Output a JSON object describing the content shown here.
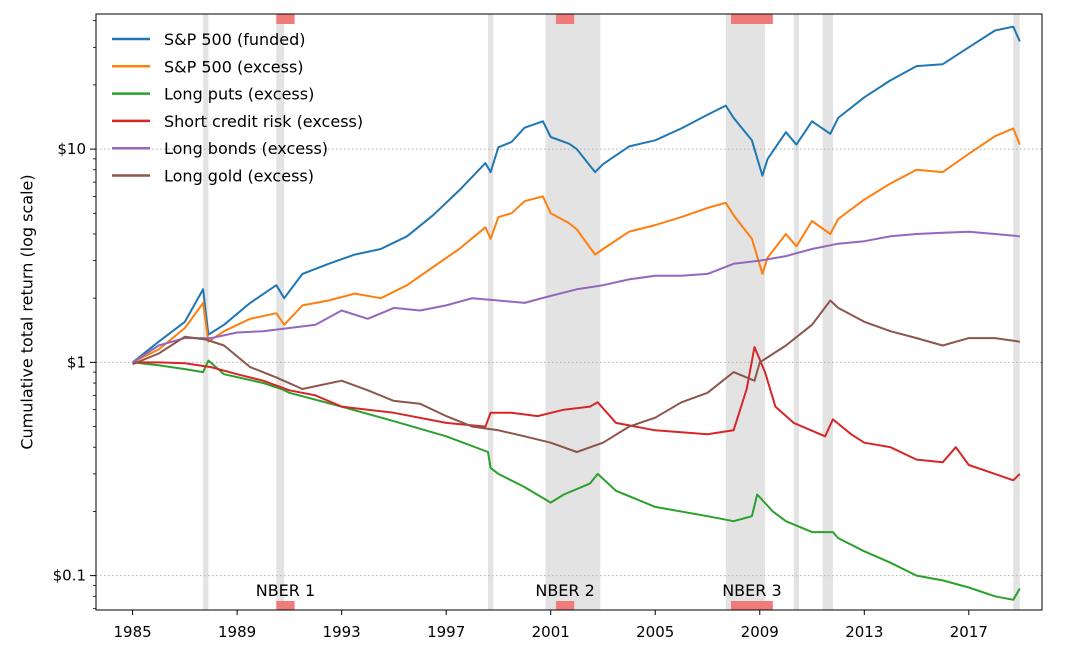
{
  "chart_data": {
    "type": "line",
    "title": "",
    "xlabel": "",
    "ylabel": "Cumulative total return (log scale)",
    "y_scale": "log",
    "xlim": [
      1983.6,
      2019.8
    ],
    "ylim": [
      0.069,
      43
    ],
    "grid": "horizontal dotted at labeled y ticks",
    "legend_position": "top-left",
    "x_ticks": [
      {
        "value": 1985,
        "label": "1985"
      },
      {
        "value": 1989,
        "label": "1989"
      },
      {
        "value": 1993,
        "label": "1993"
      },
      {
        "value": 1997,
        "label": "1997"
      },
      {
        "value": 2001,
        "label": "2001"
      },
      {
        "value": 2005,
        "label": "2005"
      },
      {
        "value": 2009,
        "label": "2009"
      },
      {
        "value": 2013,
        "label": "2013"
      },
      {
        "value": 2017,
        "label": "2017"
      }
    ],
    "y_ticks": [
      {
        "value": 0.1,
        "label": "$0.1"
      },
      {
        "value": 1,
        "label": "$1"
      },
      {
        "value": 10,
        "label": "$10"
      }
    ],
    "shaded_periods": [
      [
        1987.7,
        1987.9
      ],
      [
        1990.5,
        1990.8
      ],
      [
        1998.6,
        1998.8
      ],
      [
        2000.8,
        2002.9
      ],
      [
        2007.7,
        2009.2
      ],
      [
        2010.3,
        2010.5
      ],
      [
        2011.4,
        2011.8
      ],
      [
        2018.7,
        2018.95
      ]
    ],
    "nber_recessions": [
      {
        "label": "NBER 1",
        "start": 1990.5,
        "end": 1991.2
      },
      {
        "label": "NBER 2",
        "start": 2001.2,
        "end": 2001.9
      },
      {
        "label": "NBER 3",
        "start": 2007.9,
        "end": 2009.5
      }
    ],
    "series": [
      {
        "name": "S&P 500 (funded)",
        "color": "#1f77b4",
        "x": [
          1985,
          1986,
          1987,
          1987.7,
          1987.9,
          1988.5,
          1989.5,
          1990.5,
          1990.8,
          1991.5,
          1992.5,
          1993.5,
          1994.5,
          1995.5,
          1996.5,
          1997.5,
          1998.5,
          1998.7,
          1999,
          1999.5,
          2000,
          2000.7,
          2001,
          2001.7,
          2002,
          2002.7,
          2003,
          2004,
          2005,
          2006,
          2007,
          2007.7,
          2008,
          2008.7,
          2009.1,
          2009.3,
          2010,
          2010.4,
          2011,
          2011.7,
          2012,
          2013,
          2014,
          2015,
          2016,
          2017,
          2018,
          2018.7,
          2018.95
        ],
        "y": [
          1.0,
          1.25,
          1.55,
          2.2,
          1.35,
          1.5,
          1.9,
          2.3,
          2.0,
          2.6,
          2.9,
          3.2,
          3.4,
          3.9,
          4.9,
          6.4,
          8.6,
          7.8,
          10.2,
          10.8,
          12.6,
          13.5,
          11.4,
          10.6,
          10.0,
          7.8,
          8.5,
          10.3,
          11.0,
          12.5,
          14.5,
          16.0,
          14.0,
          11.0,
          7.5,
          9.0,
          12.0,
          10.5,
          13.5,
          11.8,
          14.0,
          17.5,
          21.0,
          24.5,
          25.0,
          30.0,
          36.0,
          37.5,
          32.0
        ]
      },
      {
        "name": "S&P 500 (excess)",
        "color": "#ff7f0e",
        "x": [
          1985,
          1986,
          1987,
          1987.7,
          1987.9,
          1988.5,
          1989.5,
          1990.5,
          1990.8,
          1991.5,
          1992.5,
          1993.5,
          1994.5,
          1995.5,
          1996.5,
          1997.5,
          1998.5,
          1998.7,
          1999,
          1999.5,
          2000,
          2000.7,
          2001,
          2001.7,
          2002,
          2002.7,
          2003,
          2004,
          2005,
          2006,
          2007,
          2007.7,
          2008,
          2008.7,
          2009.1,
          2009.3,
          2010,
          2010.4,
          2011,
          2011.7,
          2012,
          2013,
          2014,
          2015,
          2016,
          2017,
          2018,
          2018.7,
          2018.95
        ],
        "y": [
          1.0,
          1.15,
          1.45,
          1.9,
          1.25,
          1.4,
          1.6,
          1.7,
          1.5,
          1.85,
          1.95,
          2.1,
          2.0,
          2.3,
          2.8,
          3.4,
          4.3,
          3.8,
          4.8,
          5.0,
          5.7,
          6.0,
          5.0,
          4.5,
          4.2,
          3.2,
          3.4,
          4.1,
          4.4,
          4.8,
          5.3,
          5.6,
          4.9,
          3.8,
          2.6,
          3.1,
          4.0,
          3.5,
          4.6,
          4.0,
          4.7,
          5.8,
          6.9,
          8.0,
          7.8,
          9.5,
          11.5,
          12.5,
          10.5
        ]
      },
      {
        "name": "Long puts (excess)",
        "color": "#2ca02c",
        "x": [
          1985,
          1986,
          1987,
          1987.7,
          1987.9,
          1988.5,
          1990,
          1990.7,
          1991,
          1993,
          1995,
          1997,
          1998.6,
          1998.7,
          1999,
          2000,
          2001,
          2001.5,
          2002.5,
          2002.8,
          2003.5,
          2005,
          2007,
          2008,
          2008.7,
          2008.9,
          2009.5,
          2010,
          2011,
          2011.8,
          2012,
          2013,
          2014,
          2015,
          2016,
          2017,
          2018,
          2018.7,
          2018.95
        ],
        "y": [
          1.0,
          0.97,
          0.93,
          0.9,
          1.02,
          0.88,
          0.8,
          0.75,
          0.72,
          0.62,
          0.53,
          0.45,
          0.38,
          0.32,
          0.3,
          0.26,
          0.22,
          0.24,
          0.27,
          0.3,
          0.25,
          0.21,
          0.19,
          0.18,
          0.19,
          0.24,
          0.2,
          0.18,
          0.16,
          0.16,
          0.15,
          0.13,
          0.115,
          0.1,
          0.095,
          0.088,
          0.08,
          0.077,
          0.087
        ]
      },
      {
        "name": "Short credit risk (excess)",
        "color": "#d62728",
        "x": [
          1985,
          1986,
          1987,
          1988,
          1989,
          1990,
          1991,
          1992,
          1993,
          1994,
          1995,
          1997,
          1998.5,
          1998.7,
          1999.5,
          2000.5,
          2001.5,
          2002.5,
          2002.8,
          2003.5,
          2005,
          2007,
          2008,
          2008.5,
          2008.8,
          2009.2,
          2009.6,
          2010.3,
          2011.5,
          2011.8,
          2012.5,
          2013,
          2014,
          2015,
          2016,
          2016.5,
          2017,
          2018,
          2018.7,
          2018.95
        ],
        "y": [
          1.0,
          1.0,
          0.99,
          0.95,
          0.88,
          0.82,
          0.74,
          0.7,
          0.62,
          0.6,
          0.58,
          0.52,
          0.5,
          0.58,
          0.58,
          0.56,
          0.6,
          0.62,
          0.65,
          0.52,
          0.48,
          0.46,
          0.48,
          0.75,
          1.18,
          0.9,
          0.62,
          0.52,
          0.45,
          0.54,
          0.46,
          0.42,
          0.4,
          0.35,
          0.34,
          0.4,
          0.33,
          0.3,
          0.28,
          0.3
        ]
      },
      {
        "name": "Long bonds (excess)",
        "color": "#9467bd",
        "x": [
          1985,
          1986,
          1987,
          1988,
          1989,
          1990,
          1991,
          1992,
          1993,
          1994,
          1995,
          1996,
          1997,
          1998,
          1999,
          2000,
          2001,
          2002,
          2003,
          2004,
          2005,
          2006,
          2007,
          2008,
          2009,
          2010,
          2011,
          2012,
          2013,
          2014,
          2015,
          2016,
          2017,
          2018,
          2018.95
        ],
        "y": [
          1.0,
          1.2,
          1.3,
          1.3,
          1.38,
          1.4,
          1.45,
          1.5,
          1.75,
          1.6,
          1.8,
          1.75,
          1.85,
          2.0,
          1.95,
          1.9,
          2.05,
          2.2,
          2.3,
          2.45,
          2.55,
          2.55,
          2.6,
          2.9,
          3.0,
          3.15,
          3.4,
          3.6,
          3.7,
          3.9,
          4.0,
          4.05,
          4.1,
          4.0,
          3.9
        ]
      },
      {
        "name": "Long gold (excess)",
        "color": "#8c564b",
        "x": [
          1985,
          1986,
          1987,
          1987.8,
          1988.5,
          1989.5,
          1990.5,
          1991.5,
          1993,
          1994,
          1995,
          1996,
          1997,
          1998,
          1999,
          2000,
          2001,
          2002,
          2003,
          2004,
          2005,
          2006,
          2007,
          2008,
          2008.8,
          2009,
          2010,
          2011,
          2011.7,
          2012,
          2013,
          2014,
          2015,
          2016,
          2017,
          2018,
          2018.95
        ],
        "y": [
          0.98,
          1.1,
          1.32,
          1.28,
          1.2,
          0.95,
          0.85,
          0.75,
          0.82,
          0.74,
          0.66,
          0.64,
          0.56,
          0.5,
          0.48,
          0.45,
          0.42,
          0.38,
          0.42,
          0.5,
          0.55,
          0.65,
          0.72,
          0.9,
          0.82,
          1.0,
          1.2,
          1.5,
          1.95,
          1.8,
          1.55,
          1.4,
          1.3,
          1.2,
          1.3,
          1.3,
          1.25
        ]
      }
    ]
  }
}
